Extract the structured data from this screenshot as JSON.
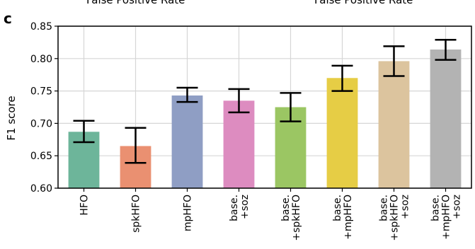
{
  "panel_letter": "c",
  "cut_off_labels": [
    "False Positive Rate",
    "False Positive Rate"
  ],
  "chart_data": {
    "type": "bar",
    "title": "",
    "xlabel": "",
    "ylabel": "F1 score",
    "ylim": [
      0.6,
      0.85
    ],
    "yticks": [
      0.6,
      0.65,
      0.7,
      0.75,
      0.8,
      0.85
    ],
    "ytick_labels": [
      "0.60",
      "0.65",
      "0.70",
      "0.75",
      "0.80",
      "0.85"
    ],
    "grid": true,
    "categories": [
      [
        "HFO"
      ],
      [
        "spkHFO"
      ],
      [
        "mpHFO"
      ],
      [
        "base.",
        "+soz"
      ],
      [
        "base.",
        "+spkHFO"
      ],
      [
        "base.",
        "+mpHFO"
      ],
      [
        "base.",
        "+spkHFO",
        "+soz"
      ],
      [
        "base.",
        "+mpHFO",
        "+soz"
      ]
    ],
    "values": [
      0.687,
      0.665,
      0.743,
      0.735,
      0.725,
      0.77,
      0.796,
      0.814
    ],
    "error_low": [
      0.671,
      0.639,
      0.733,
      0.717,
      0.703,
      0.75,
      0.773,
      0.798
    ],
    "error_high": [
      0.704,
      0.693,
      0.755,
      0.753,
      0.747,
      0.789,
      0.819,
      0.829
    ],
    "colors": [
      "#6db59a",
      "#ea9071",
      "#8f9ec4",
      "#dd8cc0",
      "#9bc663",
      "#e6cd45",
      "#dcc49e",
      "#b3b3b3"
    ]
  }
}
